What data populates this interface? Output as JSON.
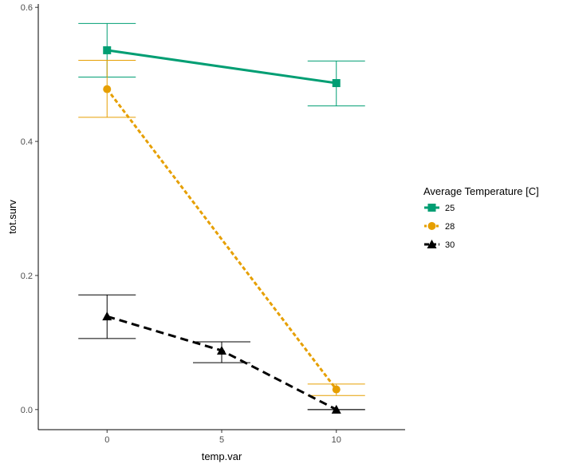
{
  "chart_data": {
    "type": "line",
    "xlabel": "temp.var",
    "ylabel": "tot.surv",
    "xlim": [
      -3,
      13
    ],
    "ylim": [
      -0.03,
      0.605
    ],
    "x_ticks": [
      0,
      5,
      10
    ],
    "x_tick_labels": [
      "0",
      "5",
      "10"
    ],
    "y_ticks": [
      0.0,
      0.2,
      0.4,
      0.6
    ],
    "y_tick_labels": [
      "0.0",
      "0.2",
      "0.4",
      "0.6"
    ],
    "grid": false,
    "legend": {
      "title": "Average Temperature [C]",
      "position": "right"
    },
    "series": [
      {
        "name": "25",
        "color": "#009E73",
        "marker": "square",
        "line_style": "solid",
        "points": [
          {
            "x": 0,
            "y": 0.536,
            "lower": 0.496,
            "upper": 0.576
          },
          {
            "x": 10,
            "y": 0.487,
            "lower": 0.453,
            "upper": 0.52
          }
        ]
      },
      {
        "name": "28",
        "color": "#E69F00",
        "marker": "circle",
        "line_style": "dotted",
        "points": [
          {
            "x": 0,
            "y": 0.478,
            "lower": 0.436,
            "upper": 0.521
          },
          {
            "x": 10,
            "y": 0.03,
            "lower": 0.021,
            "upper": 0.038
          }
        ]
      },
      {
        "name": "30",
        "color": "#000000",
        "marker": "triangle",
        "line_style": "dashed",
        "points": [
          {
            "x": 0,
            "y": 0.139,
            "lower": 0.106,
            "upper": 0.171
          },
          {
            "x": 5,
            "y": 0.088,
            "lower": 0.07,
            "upper": 0.101
          },
          {
            "x": 10,
            "y": 0.0,
            "lower": 0.0,
            "upper": 0.0
          }
        ]
      }
    ]
  }
}
